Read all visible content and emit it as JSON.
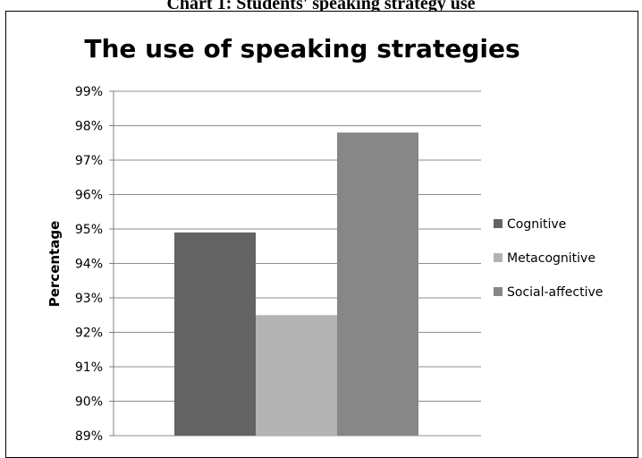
{
  "caption": "Chart 1: Students' speaking strategy use",
  "chart_data": {
    "type": "bar",
    "title": "The use of speaking strategies",
    "xlabel": "",
    "ylabel": "Percentage",
    "ylim": [
      89,
      99
    ],
    "yticks": [
      "89%",
      "90%",
      "91%",
      "92%",
      "93%",
      "94%",
      "95%",
      "96%",
      "97%",
      "98%",
      "99%"
    ],
    "grid": true,
    "legend_position": "right",
    "series": [
      {
        "name": "Cognitive",
        "value": 94.9,
        "color": "#636363"
      },
      {
        "name": "Metacognitive",
        "value": 92.5,
        "color": "#b3b3b3"
      },
      {
        "name": "Social-affective",
        "value": 97.8,
        "color": "#878787"
      }
    ]
  }
}
